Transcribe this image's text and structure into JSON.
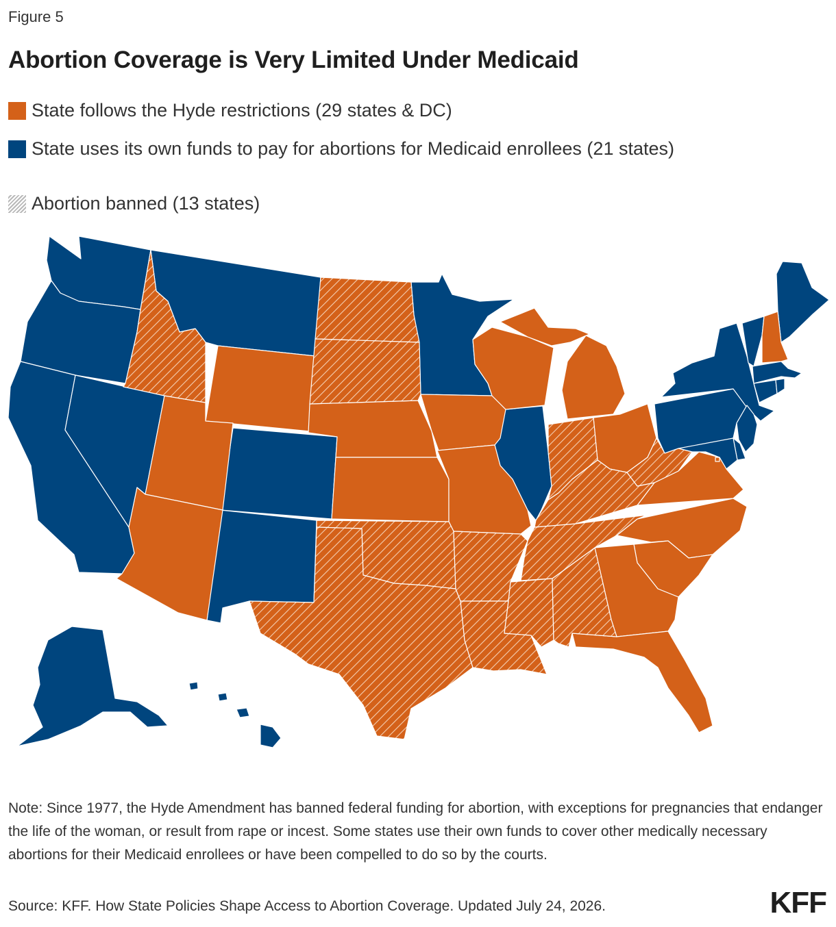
{
  "figure_label": "Figure 5",
  "title": "Abortion Coverage is Very Limited Under Medicaid",
  "legend": [
    {
      "key": "hyde",
      "label": "State follows the Hyde restrictions (29 states & DC)",
      "color": "#d46119"
    },
    {
      "key": "own",
      "label": "State uses its own funds to pay for abortions for Medicaid enrollees (21 states)",
      "color": "#00457e"
    },
    {
      "key": "banned",
      "label": "Abortion banned (13 states)",
      "pattern": "hatch"
    }
  ],
  "colors": {
    "hyde": "#d46119",
    "own": "#00457e",
    "hatch": "#f1c7a8"
  },
  "map_data": {
    "own_funds": [
      "Alaska",
      "Hawaii",
      "Washington",
      "Oregon",
      "California",
      "Nevada",
      "Montana",
      "Colorado",
      "New Mexico",
      "Minnesota",
      "Illinois",
      "New York",
      "Vermont",
      "Maine",
      "Massachusetts",
      "Connecticut",
      "Rhode Island",
      "New Jersey",
      "Pennsylvania",
      "Delaware",
      "Maryland"
    ],
    "hyde": [
      "Idaho",
      "Utah",
      "Arizona",
      "Wyoming",
      "North Dakota",
      "South Dakota",
      "Nebraska",
      "Kansas",
      "Oklahoma",
      "Texas",
      "Iowa",
      "Missouri",
      "Arkansas",
      "Louisiana",
      "Wisconsin",
      "Michigan",
      "Indiana",
      "Ohio",
      "Kentucky",
      "Tennessee",
      "Mississippi",
      "Alabama",
      "Georgia",
      "Florida",
      "South Carolina",
      "North Carolina",
      "Virginia",
      "West Virginia",
      "New Hampshire",
      "District of Columbia"
    ],
    "banned": [
      "Idaho",
      "North Dakota",
      "South Dakota",
      "Oklahoma",
      "Texas",
      "Arkansas",
      "Louisiana",
      "Mississippi",
      "Alabama",
      "Tennessee",
      "Kentucky",
      "Indiana",
      "West Virginia"
    ]
  },
  "note": "Note: Since 1977, the Hyde Amendment has banned federal funding for abortion, with exceptions for pregnancies that endanger the life of the woman, or result from rape or incest. Some states use their own funds to cover other medically necessary abortions for their Medicaid enrollees or have been compelled to do so by the courts.",
  "source": "Source: KFF. How State Policies Shape Access to Abortion Coverage. Updated July 24, 2026.",
  "logo": "KFF"
}
